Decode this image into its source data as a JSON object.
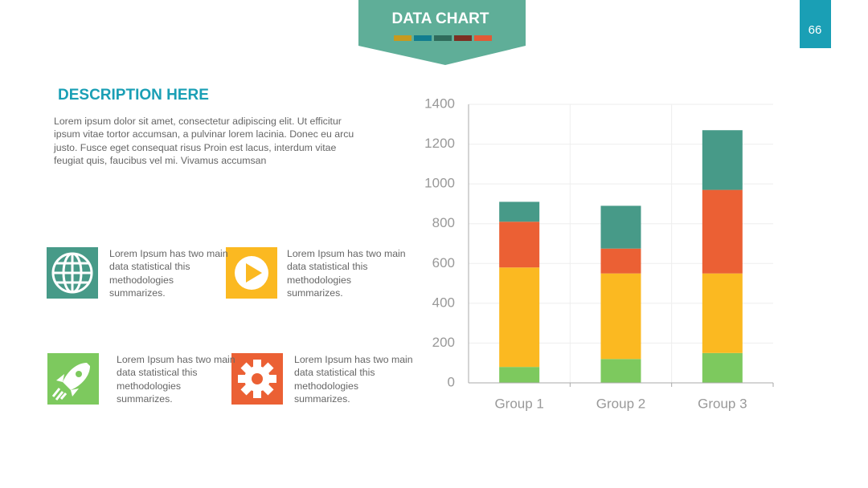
{
  "header": {
    "title": "DATA CHART",
    "page_number": "66"
  },
  "description": {
    "title": "DESCRIPTION HERE",
    "body": "Lorem ipsum dolor sit amet, consectetur adipiscing elit. Ut efficitur ipsum vitae tortor accumsan, a pulvinar lorem lacinia. Donec eu arcu justo. Fusce eget consequat risus Proin est lacus, interdum vitae feugiat quis, faucibus vel mi.  Vivamus accumsan"
  },
  "features": [
    {
      "text": "Lorem Ipsum has two main data statistical this methodologies summarizes."
    },
    {
      "text": "Lorem Ipsum has two main data statistical this methodologies summarizes."
    },
    {
      "text": "Lorem Ipsum has two main data statistical this methodologies summarizes."
    },
    {
      "text": "Lorem Ipsum has two main data statistical this methodologies summarizes."
    }
  ],
  "chart_data": {
    "type": "stacked_bar",
    "categories": [
      "Group 1",
      "Group 2",
      "Group 3"
    ],
    "series": [
      {
        "color": "#7dc95e",
        "values": [
          80,
          120,
          150
        ]
      },
      {
        "color": "#fbb921",
        "values": [
          500,
          430,
          400
        ]
      },
      {
        "color": "#eb6034",
        "values": [
          230,
          125,
          420
        ]
      },
      {
        "color": "#479a88",
        "values": [
          100,
          215,
          300
        ]
      }
    ],
    "ylim": [
      0,
      1400
    ],
    "yticks": [
      0,
      200,
      400,
      600,
      800,
      1000,
      1200,
      1400
    ],
    "grid": true
  }
}
